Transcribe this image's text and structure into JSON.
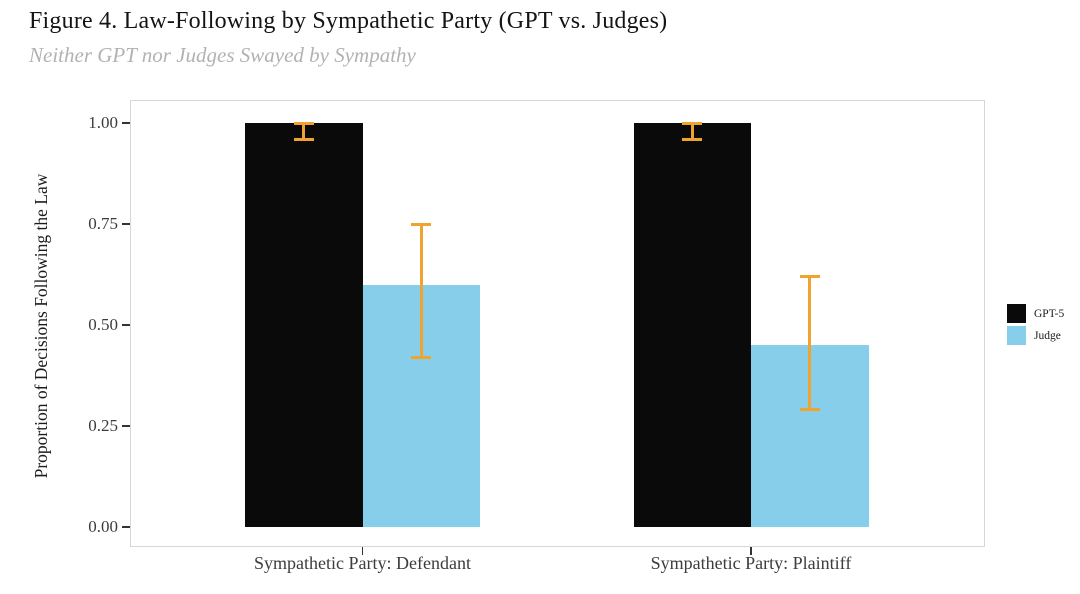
{
  "title": "Figure 4. Law-Following by Sympathetic Party (GPT vs. Judges)",
  "subtitle": "Neither GPT nor Judges Swayed by Sympathy",
  "chart_data": {
    "type": "bar",
    "title": "Figure 4. Law-Following by Sympathetic Party (GPT vs. Judges)",
    "subtitle": "Neither GPT nor Judges Swayed by Sympathy",
    "categories": [
      "Sympathetic Party: Defendant",
      "Sympathetic Party: Plaintiff"
    ],
    "series": [
      {
        "name": "GPT-5",
        "color": "#0a0a0a",
        "values": [
          1.0,
          1.0
        ],
        "error_bars": [
          [
            0.96,
            1.0
          ],
          [
            0.96,
            1.0
          ]
        ]
      },
      {
        "name": "Judge",
        "color": "#87ceeb",
        "values": [
          0.6,
          0.45
        ],
        "error_bars": [
          [
            0.42,
            0.75
          ],
          [
            0.29,
            0.62
          ]
        ]
      }
    ],
    "error_bar_color": "#f0a32e",
    "xlabel": "",
    "ylabel": "Proportion of Decisions Following the Law",
    "ylim": [
      0,
      1.0
    ],
    "yticks": [
      {
        "value": 0.0,
        "label": "0.00"
      },
      {
        "value": 0.25,
        "label": "0.25"
      },
      {
        "value": 0.5,
        "label": "0.50"
      },
      {
        "value": 0.75,
        "label": "0.75"
      },
      {
        "value": 1.0,
        "label": "1.00"
      }
    ],
    "grid": false,
    "legend_position": "right"
  }
}
